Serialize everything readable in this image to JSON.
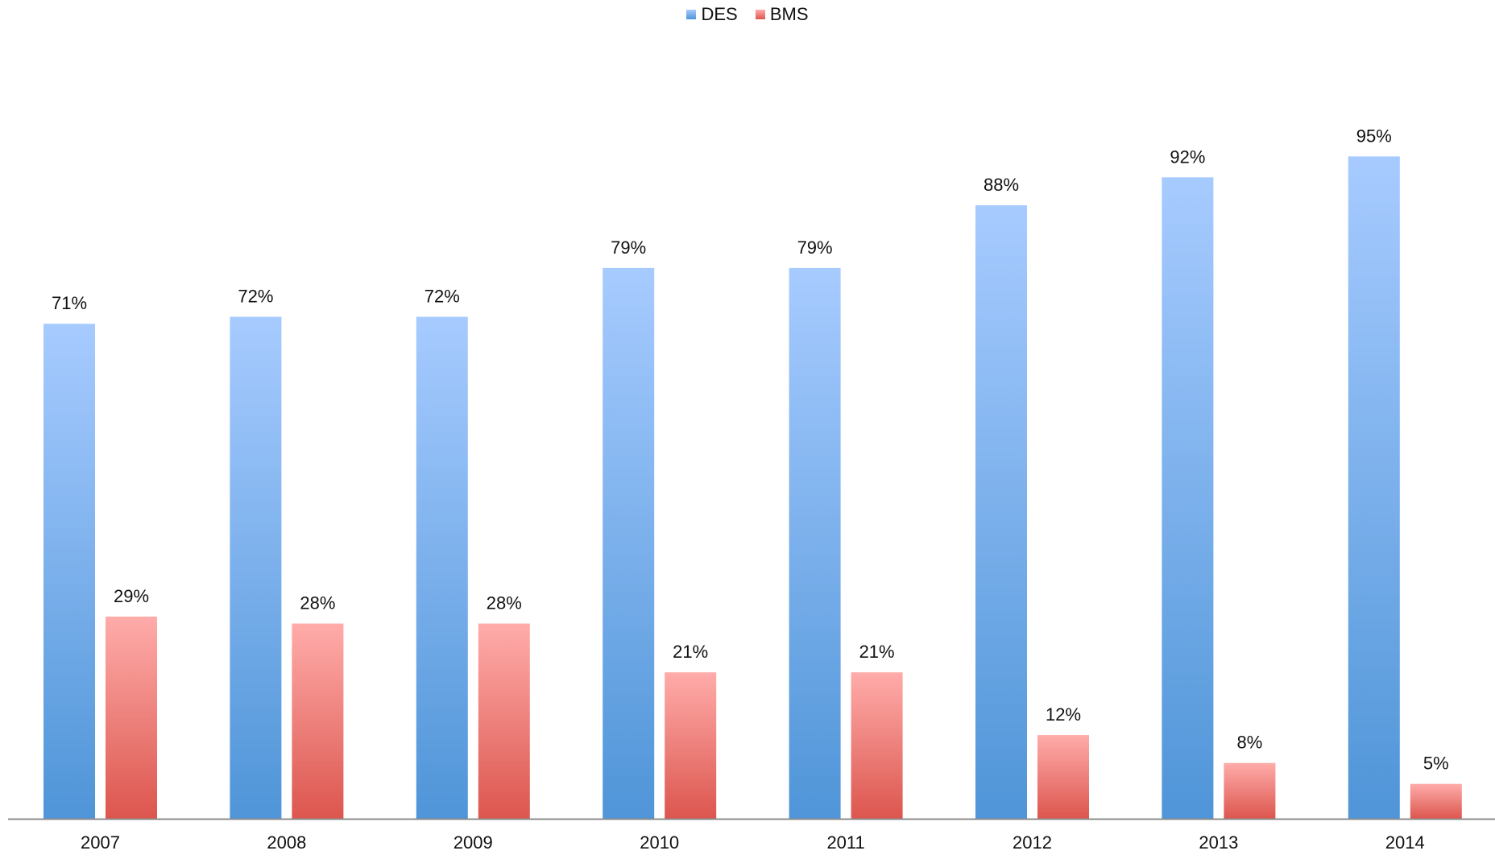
{
  "chart_data": {
    "type": "bar",
    "categories": [
      "2007",
      "2008",
      "2009",
      "2010",
      "2011",
      "2012",
      "2013",
      "2014"
    ],
    "series": [
      {
        "name": "DES",
        "values": [
          71,
          72,
          72,
          79,
          79,
          88,
          92,
          95
        ],
        "labels": [
          "71%",
          "72%",
          "72%",
          "79%",
          "79%",
          "88%",
          "92%",
          "95%"
        ],
        "color_top": "#a7cbff",
        "color_bottom": "#4f95d8"
      },
      {
        "name": "BMS",
        "values": [
          29,
          28,
          28,
          21,
          21,
          12,
          8,
          5
        ],
        "labels": [
          "29%",
          "28%",
          "28%",
          "21%",
          "21%",
          "12%",
          "8%",
          "5%"
        ],
        "color_top": "#ffacaa",
        "color_bottom": "#dc564e"
      }
    ],
    "ylim": [
      0,
      100
    ],
    "grid": false,
    "legend_position": "top-center",
    "axis_color": "#8c8c8c"
  }
}
